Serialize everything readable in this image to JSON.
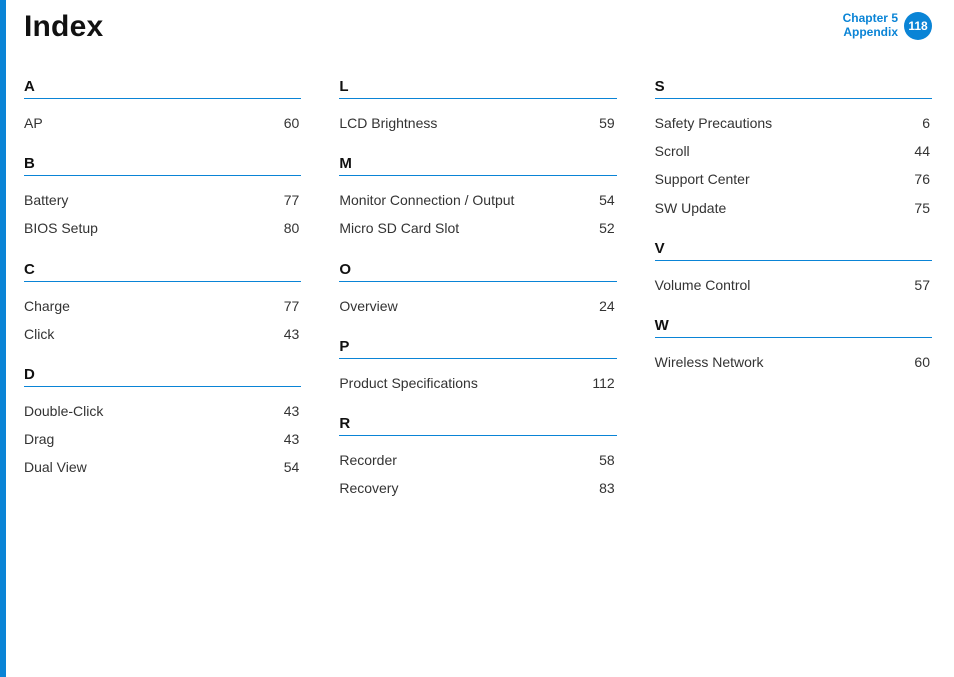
{
  "title": "Index",
  "header": {
    "chapter_line1": "Chapter 5",
    "chapter_line2": "Appendix",
    "page_number": "118"
  },
  "colors": {
    "accent": "#0a84d6",
    "text": "#333333",
    "title": "#111111",
    "background": "#ffffff"
  },
  "columns": [
    {
      "sections": [
        {
          "letter": "A",
          "entries": [
            {
              "term": "AP",
              "page": "60"
            }
          ]
        },
        {
          "letter": "B",
          "entries": [
            {
              "term": "Battery",
              "page": "77"
            },
            {
              "term": "BIOS Setup",
              "page": "80"
            }
          ]
        },
        {
          "letter": "C",
          "entries": [
            {
              "term": "Charge",
              "page": "77"
            },
            {
              "term": "Click",
              "page": "43"
            }
          ]
        },
        {
          "letter": "D",
          "entries": [
            {
              "term": "Double-Click",
              "page": "43"
            },
            {
              "term": "Drag",
              "page": "43"
            },
            {
              "term": "Dual View",
              "page": "54"
            }
          ]
        }
      ]
    },
    {
      "sections": [
        {
          "letter": "L",
          "entries": [
            {
              "term": "LCD Brightness",
              "page": "59"
            }
          ]
        },
        {
          "letter": "M",
          "entries": [
            {
              "term": "Monitor Connection / Output",
              "page": "54"
            },
            {
              "term": "Micro SD Card Slot",
              "page": "52"
            }
          ]
        },
        {
          "letter": "O",
          "entries": [
            {
              "term": "Overview",
              "page": "24"
            }
          ]
        },
        {
          "letter": "P",
          "entries": [
            {
              "term": "Product Specifications",
              "page": "112"
            }
          ]
        },
        {
          "letter": "R",
          "entries": [
            {
              "term": "Recorder",
              "page": "58"
            },
            {
              "term": "Recovery",
              "page": "83"
            }
          ]
        }
      ]
    },
    {
      "sections": [
        {
          "letter": "S",
          "entries": [
            {
              "term": "Safety Precautions",
              "page": "6"
            },
            {
              "term": "Scroll",
              "page": "44"
            },
            {
              "term": "Support Center",
              "page": "76"
            },
            {
              "term": "SW Update",
              "page": "75"
            }
          ]
        },
        {
          "letter": "V",
          "entries": [
            {
              "term": "Volume Control",
              "page": "57"
            }
          ]
        },
        {
          "letter": "W",
          "entries": [
            {
              "term": "Wireless Network",
              "page": "60"
            }
          ]
        }
      ]
    }
  ]
}
